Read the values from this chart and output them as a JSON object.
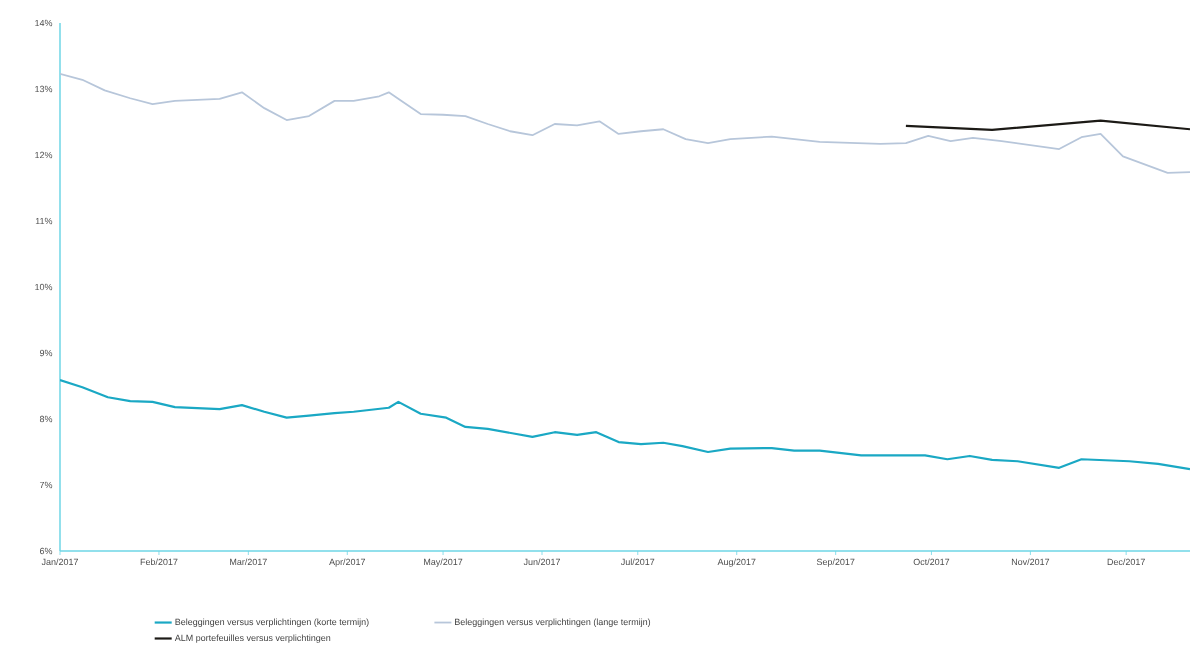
{
  "chart_data": {
    "type": "line",
    "xlim": [
      "2017-01-01",
      "2017-12-21"
    ],
    "ylim": [
      6,
      14
    ],
    "xticks": [
      {
        "value": "2017-01-01",
        "label": "Jan/2017"
      },
      {
        "value": "2017-02-01",
        "label": "Feb/2017"
      },
      {
        "value": "2017-03-01",
        "label": "Mar/2017"
      },
      {
        "value": "2017-04-01",
        "label": "Apr/2017"
      },
      {
        "value": "2017-05-01",
        "label": "May/2017"
      },
      {
        "value": "2017-06-01",
        "label": "Jun/2017"
      },
      {
        "value": "2017-07-01",
        "label": "Jul/2017"
      },
      {
        "value": "2017-08-01",
        "label": "Aug/2017"
      },
      {
        "value": "2017-09-01",
        "label": "Sep/2017"
      },
      {
        "value": "2017-10-01",
        "label": "Oct/2017"
      },
      {
        "value": "2017-11-01",
        "label": "Nov/2017"
      },
      {
        "value": "2017-12-01",
        "label": "Dec/2017"
      }
    ],
    "yticks": [
      {
        "value": 6,
        "label": "6%"
      },
      {
        "value": 7,
        "label": "7%"
      },
      {
        "value": 8,
        "label": "8%"
      },
      {
        "value": 9,
        "label": "9%"
      },
      {
        "value": 10,
        "label": "10%"
      },
      {
        "value": 11,
        "label": "11%"
      },
      {
        "value": 12,
        "label": "12%"
      },
      {
        "value": 13,
        "label": "13%"
      },
      {
        "value": 14,
        "label": "14%"
      }
    ],
    "legend": "bottom",
    "grid": false,
    "series": [
      {
        "name": "Beleggingen versus verplichtingen (korte termijn)",
        "color": "#1aa8c4",
        "x": [
          "2017-01-01",
          "2017-01-08",
          "2017-01-16",
          "2017-01-23",
          "2017-01-30",
          "2017-02-06",
          "2017-02-20",
          "2017-02-27",
          "2017-03-06",
          "2017-03-13",
          "2017-03-20",
          "2017-03-28",
          "2017-04-03",
          "2017-04-14",
          "2017-04-17",
          "2017-04-24",
          "2017-05-02",
          "2017-05-08",
          "2017-05-15",
          "2017-05-22",
          "2017-05-29",
          "2017-06-05",
          "2017-06-12",
          "2017-06-18",
          "2017-06-25",
          "2017-07-02",
          "2017-07-09",
          "2017-07-15",
          "2017-07-23",
          "2017-07-30",
          "2017-08-12",
          "2017-08-19",
          "2017-08-27",
          "2017-09-09",
          "2017-09-29",
          "2017-10-06",
          "2017-10-13",
          "2017-10-20",
          "2017-10-28",
          "2017-11-10",
          "2017-11-17",
          "2017-12-02",
          "2017-12-11",
          "2017-12-21"
        ],
        "values": [
          8.59,
          8.48,
          8.33,
          8.27,
          8.26,
          8.18,
          8.15,
          8.21,
          8.11,
          8.02,
          8.05,
          8.09,
          8.11,
          8.17,
          8.26,
          8.08,
          8.02,
          7.88,
          7.85,
          7.79,
          7.73,
          7.8,
          7.76,
          7.8,
          7.65,
          7.62,
          7.64,
          7.59,
          7.5,
          7.55,
          7.56,
          7.52,
          7.52,
          7.45,
          7.45,
          7.39,
          7.44,
          7.38,
          7.36,
          7.26,
          7.39,
          7.36,
          7.32,
          7.24
        ]
      },
      {
        "name": "Beleggingen versus verplichtingen (lange termijn)",
        "color": "#b7c6da",
        "x": [
          "2017-01-01",
          "2017-01-08",
          "2017-01-15",
          "2017-01-23",
          "2017-01-30",
          "2017-02-06",
          "2017-02-20",
          "2017-02-27",
          "2017-03-06",
          "2017-03-13",
          "2017-03-20",
          "2017-03-28",
          "2017-04-03",
          "2017-04-11",
          "2017-04-14",
          "2017-04-18",
          "2017-04-24",
          "2017-05-01",
          "2017-05-08",
          "2017-05-15",
          "2017-05-22",
          "2017-05-29",
          "2017-06-05",
          "2017-06-12",
          "2017-06-19",
          "2017-06-25",
          "2017-07-02",
          "2017-07-09",
          "2017-07-16",
          "2017-07-23",
          "2017-07-30",
          "2017-08-12",
          "2017-08-27",
          "2017-09-15",
          "2017-09-23",
          "2017-09-30",
          "2017-10-07",
          "2017-10-14",
          "2017-10-23",
          "2017-11-10",
          "2017-11-17",
          "2017-11-23",
          "2017-11-30",
          "2017-12-14",
          "2017-12-21"
        ],
        "values": [
          13.23,
          13.14,
          12.98,
          12.86,
          12.77,
          12.82,
          12.85,
          12.95,
          12.71,
          12.53,
          12.59,
          12.82,
          12.82,
          12.89,
          12.95,
          12.82,
          12.62,
          12.61,
          12.59,
          12.47,
          12.36,
          12.3,
          12.47,
          12.45,
          12.51,
          12.32,
          12.36,
          12.39,
          12.24,
          12.18,
          12.24,
          12.28,
          12.2,
          12.17,
          12.18,
          12.29,
          12.21,
          12.26,
          12.21,
          12.09,
          12.27,
          12.32,
          11.98,
          11.73,
          11.74
        ]
      },
      {
        "name": "ALM portefeuilles versus verplichtingen",
        "color": "#1c1a16",
        "x": [
          "2017-09-23",
          "2017-10-20",
          "2017-11-23",
          "2017-12-21"
        ],
        "values": [
          12.44,
          12.38,
          12.52,
          12.39
        ]
      }
    ]
  }
}
